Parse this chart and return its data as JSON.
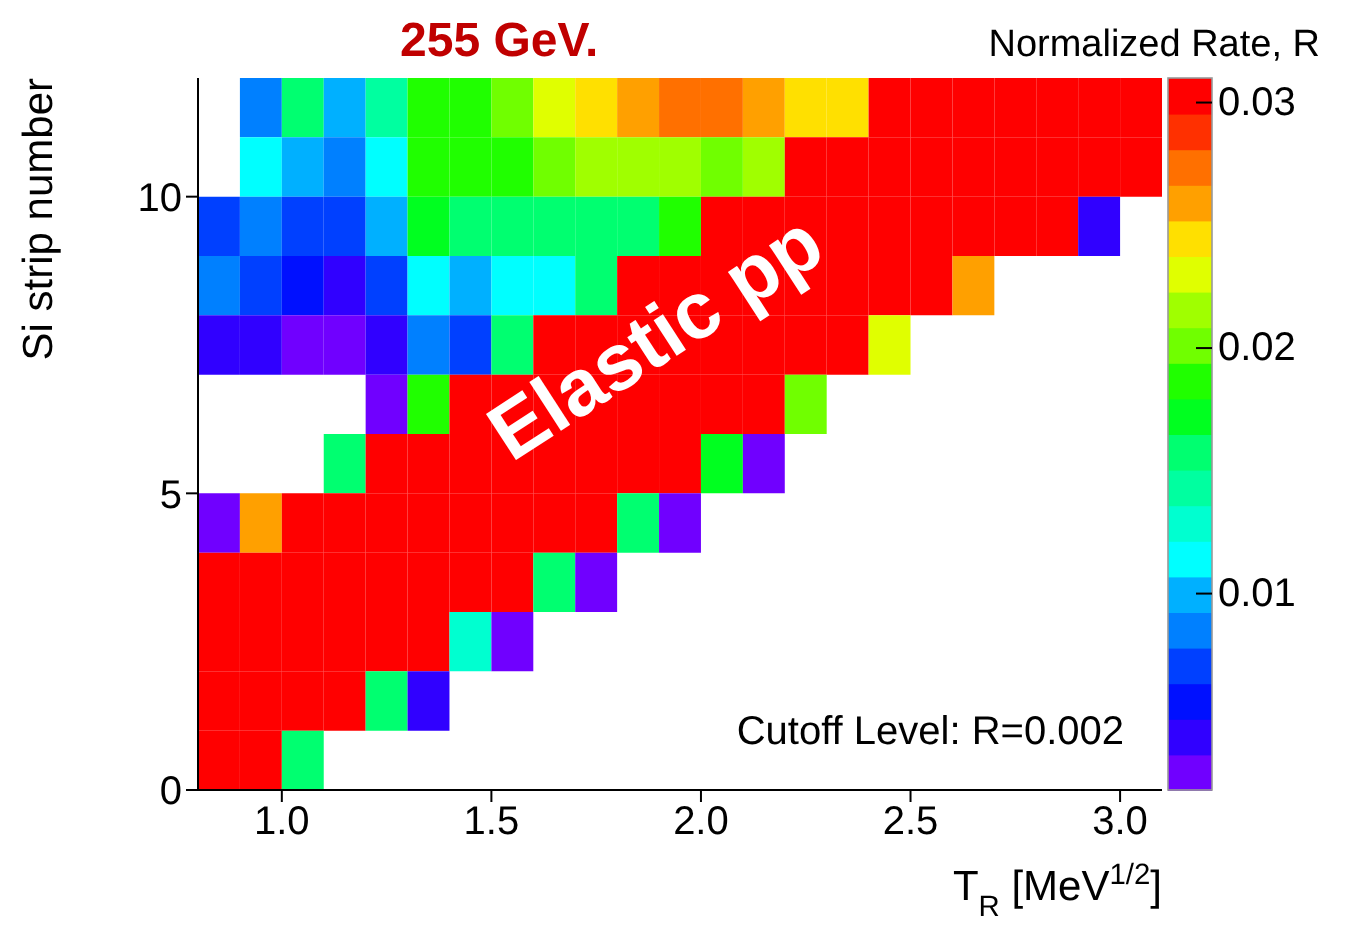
{
  "chart_data": {
    "type": "heatmap",
    "title": "255 GeV.",
    "xlabel": "T$_{R}$ [MeV$^{1/2}$]",
    "ylabel": "Si strip number",
    "clabel": "Normalized Rate,  R",
    "annotations": [
      "Elastic pp",
      "Cutoff Level: R=0.002"
    ],
    "cells": [
      [
        null,
        0.0085,
        0.0158,
        0.01,
        0.0143,
        0.0187,
        0.0187,
        0.0201,
        0.023,
        0.0245,
        0.0259,
        0.0274,
        0.0274,
        0.0259,
        0.0245,
        0.0245,
        0.0303,
        0.0303,
        0.0303,
        0.0303,
        0.0303,
        0.0303,
        0.0303
      ],
      [
        null,
        0.0114,
        0.01,
        0.0085,
        0.0114,
        0.0187,
        0.0187,
        0.0187,
        0.0201,
        0.0216,
        0.0216,
        0.0216,
        0.0201,
        0.0216,
        0.0303,
        0.0303,
        0.0303,
        0.0303,
        0.0303,
        0.0303,
        0.0303,
        0.0303,
        0.0303
      ],
      [
        0.0071,
        0.0085,
        0.0071,
        0.0071,
        0.01,
        0.0172,
        0.0158,
        0.0158,
        0.0158,
        0.0158,
        0.0158,
        0.0187,
        0.0303,
        0.0303,
        0.0303,
        0.0303,
        0.0303,
        0.0303,
        0.0303,
        0.0303,
        0.0303,
        0.0042,
        null
      ],
      [
        0.0085,
        0.0071,
        0.0056,
        0.0042,
        0.0071,
        0.0114,
        0.01,
        0.0114,
        0.0114,
        0.0158,
        0.0303,
        0.0303,
        0.0303,
        0.0303,
        0.0303,
        0.0303,
        0.0303,
        0.0303,
        0.0259,
        null,
        null,
        null,
        null
      ],
      [
        0.0042,
        0.0042,
        0.0027,
        0.0027,
        0.0042,
        0.0085,
        0.0071,
        0.0158,
        0.0303,
        0.0303,
        0.0303,
        0.0303,
        0.0303,
        0.0303,
        0.0303,
        0.0303,
        0.023,
        null,
        null,
        null,
        null,
        null,
        null
      ],
      [
        null,
        null,
        null,
        null,
        0.0027,
        0.0187,
        0.0303,
        0.0303,
        0.0303,
        0.0303,
        0.0303,
        0.0303,
        0.0303,
        0.0303,
        0.0201,
        null,
        null,
        null,
        null,
        null,
        null,
        null,
        null
      ],
      [
        null,
        null,
        null,
        0.0158,
        0.0303,
        0.0303,
        0.0303,
        0.0303,
        0.0303,
        0.0303,
        0.0303,
        0.0303,
        0.0172,
        0.0027,
        null,
        null,
        null,
        null,
        null,
        null,
        null,
        null,
        null
      ],
      [
        0.0027,
        0.0259,
        0.0303,
        0.0303,
        0.0303,
        0.0303,
        0.0303,
        0.0303,
        0.0303,
        0.0303,
        0.0158,
        0.0027,
        null,
        null,
        null,
        null,
        null,
        null,
        null,
        null,
        null,
        null,
        null
      ],
      [
        0.0303,
        0.0303,
        0.0303,
        0.0303,
        0.0303,
        0.0303,
        0.0303,
        0.0303,
        0.0158,
        0.0027,
        null,
        null,
        null,
        null,
        null,
        null,
        null,
        null,
        null,
        null,
        null,
        null,
        null
      ],
      [
        0.0303,
        0.0303,
        0.0303,
        0.0303,
        0.0303,
        0.0303,
        0.0129,
        0.0027,
        null,
        null,
        null,
        null,
        null,
        null,
        null,
        null,
        null,
        null,
        null,
        null,
        null,
        null,
        null
      ],
      [
        0.0303,
        0.0303,
        0.0303,
        0.0303,
        0.0158,
        0.0042,
        null,
        null,
        null,
        null,
        null,
        null,
        null,
        null,
        null,
        null,
        null,
        null,
        null,
        null,
        null,
        null,
        null
      ],
      [
        0.0303,
        0.0303,
        0.0158,
        null,
        null,
        null,
        null,
        null,
        null,
        null,
        null,
        null,
        null,
        null,
        null,
        null,
        null,
        null,
        null,
        null,
        null,
        null,
        null
      ]
    ],
    "xlim": [
      0.8,
      3.1
    ],
    "xticks": [
      {
        "value": 1,
        "label": "1.0"
      },
      {
        "value": 1.5,
        "label": "1.5"
      },
      {
        "value": 2,
        "label": "2.0"
      },
      {
        "value": 2.5,
        "label": "2.5"
      },
      {
        "value": 3,
        "label": "3.0"
      }
    ],
    "ylim": [
      0,
      12
    ],
    "yticks": [
      0,
      5,
      10
    ],
    "clim": [
      0.002,
      0.031
    ],
    "cticks": [
      0.01,
      0.02,
      0.03
    ]
  }
}
